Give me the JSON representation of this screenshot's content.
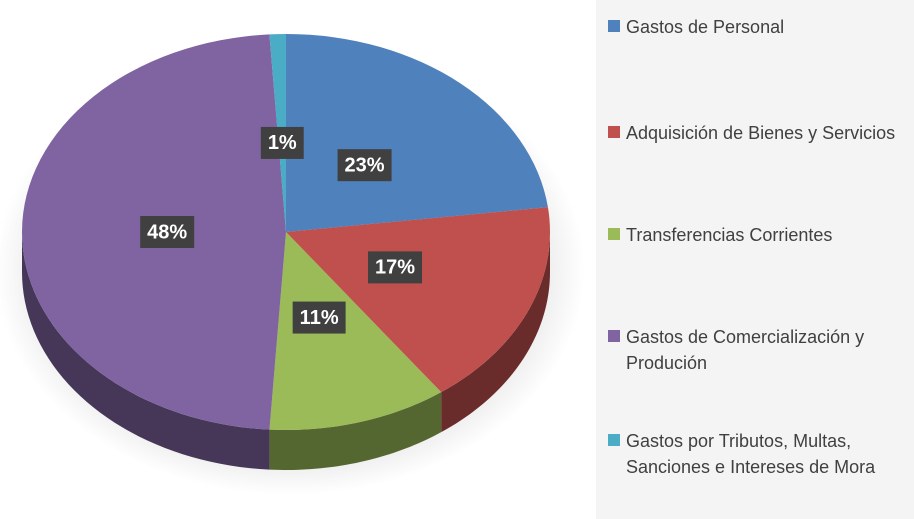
{
  "chart_data": {
    "type": "pie",
    "categories": [
      "Gastos de Personal",
      "Adquisición de Bienes y Servicios",
      "Transferencias Corrientes",
      "Gastos de Comercialización y Produción",
      "Gastos por Tributos, Multas, Sanciones e Intereses de Mora"
    ],
    "values": [
      23,
      17,
      11,
      48,
      1
    ],
    "value_labels": [
      "23%",
      "17%",
      "11%",
      "48%",
      "1%"
    ],
    "colors": [
      "#4f81bd",
      "#c0504d",
      "#9bbb59",
      "#8064a2",
      "#4bacc6"
    ],
    "legend": "right"
  }
}
